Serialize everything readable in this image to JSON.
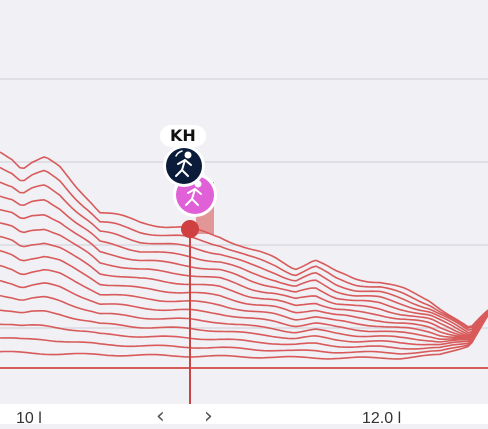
{
  "marker": {
    "initials": "KH",
    "runner_icon": "runner-icon",
    "secondary_icon": "runner-icon",
    "colors": {
      "primary_avatar": "#0b1b3a",
      "secondary_avatar": "#e060d8",
      "line": "#d85a5a",
      "grid": "#d9d9e0",
      "background": "#f0f0f5"
    }
  },
  "axis": {
    "left_label": "10 l",
    "right_label": "12.0 l",
    "prev_icon": "chevron-left-icon",
    "next_icon": "chevron-right-icon"
  }
}
